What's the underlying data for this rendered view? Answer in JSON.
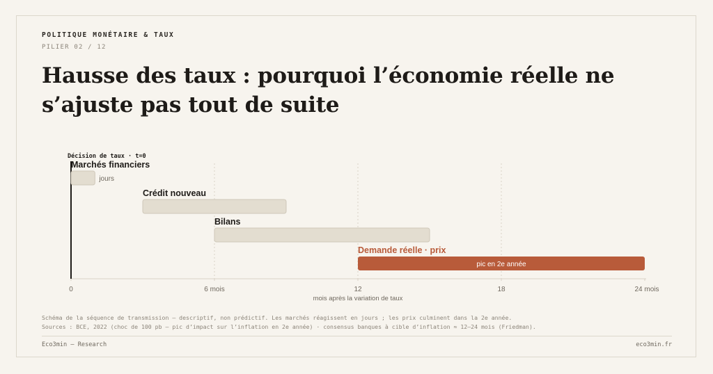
{
  "header": {
    "kicker": "POLITIQUE MONÉTAIRE & TAUX",
    "pillar": "PILIER 02 / 12",
    "title": "Hausse des taux : pourquoi l’économie réelle ne s’ajuste pas tout de suite"
  },
  "chart_data": {
    "type": "gantt",
    "xlabel": "mois après la variation de taux",
    "xlim": [
      0,
      24
    ],
    "ticks": [
      {
        "value": 0,
        "label": "0"
      },
      {
        "value": 6,
        "label": "6 mois"
      },
      {
        "value": 12,
        "label": "12"
      },
      {
        "value": 18,
        "label": "18"
      },
      {
        "value": 24,
        "label": "24 mois"
      }
    ],
    "marker": {
      "value": 0,
      "label": "Décision de taux · t=0"
    },
    "phases": [
      {
        "label": "Marchés financiers",
        "start": 0,
        "end": 1,
        "note": "jours",
        "highlight": false
      },
      {
        "label": "Crédit nouveau",
        "start": 3,
        "end": 9,
        "note": "",
        "highlight": false
      },
      {
        "label": "Bilans",
        "start": 6,
        "end": 15,
        "note": "",
        "highlight": false
      },
      {
        "label": "Demande réelle · prix",
        "start": 12,
        "end": 24,
        "note": "pic en 2e année",
        "highlight": true
      }
    ],
    "colors": {
      "bar": "#e3ddd0",
      "bar_border": "#cfc8b9",
      "highlight": "#b85b3a",
      "text": "#1e1b18",
      "muted": "#6f685e",
      "grid": "#d8d2c6"
    },
    "grid": true
  },
  "notes": {
    "line1": "Schéma de la séquence de transmission — descriptif, non prédictif. Les marchés réagissent en jours ; les prix culminent dans la 2e année.",
    "line2": "Sources : BCE, 2022 (choc de 100 pb — pic d’impact sur l’inflation en 2e année) · consensus banques à cible d’inflation ≈ 12–24 mois (Friedman)."
  },
  "footer": {
    "left": "Eco3min — Research",
    "right": "eco3min.fr"
  }
}
